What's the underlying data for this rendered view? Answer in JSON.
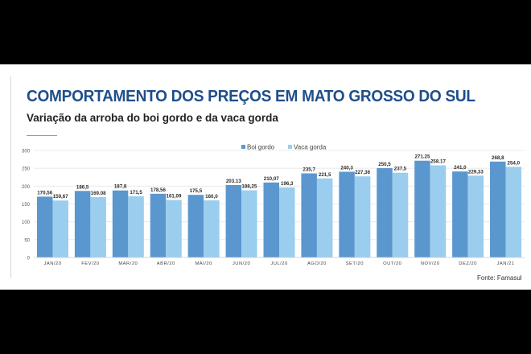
{
  "header": {
    "title": "COMPORTAMENTO DOS PREÇOS EM MATO GROSSO DO SUL",
    "subtitle": "Variação da arroba do boi gordo e da vaca gorda"
  },
  "source": "Fonte: Famasul",
  "colors": {
    "boi": "#5b97cf",
    "vaca": "#9bcdee",
    "title": "#1f4e8a"
  },
  "chart_data": {
    "type": "bar",
    "title": "COMPORTAMENTO DOS PREÇOS EM MATO GROSSO DO SUL",
    "subtitle": "Variação da arroba do boi gordo e da vaca gorda",
    "categories": [
      "JAN/20",
      "FEV/20",
      "MAR/20",
      "ABR/20",
      "MAI/20",
      "JUN/20",
      "JUL/20",
      "AGO/20",
      "SET/20",
      "OUT/20",
      "NOV/20",
      "DEZ/20",
      "JAN/21"
    ],
    "series": [
      {
        "name": "Boi gordo",
        "values": [
          170.56,
          186.5,
          187.8,
          178.56,
          175.5,
          203.13,
          210.07,
          235.7,
          240.3,
          250.5,
          271.25,
          241.0,
          268.8
        ],
        "labels": [
          "170,56",
          "186,5",
          "187,8",
          "178,56",
          "175,5",
          "203.13",
          "210,07",
          "235,7",
          "240,3",
          "250,5",
          "271.25",
          "241,0",
          "268,8"
        ]
      },
      {
        "name": "Vaca gorda",
        "values": [
          159.67,
          169.08,
          171.5,
          161.09,
          160.0,
          188.25,
          196.3,
          221.5,
          227.36,
          237.5,
          258.17,
          229.33,
          254.0
        ],
        "labels": [
          "159,67",
          "169.08",
          "171,5",
          "161,09",
          "160,0",
          "188,25",
          "196,3",
          "221,5",
          "227,36",
          "237,5",
          "258.17",
          "229,33",
          "254,0"
        ]
      }
    ],
    "yticks": [
      0,
      50,
      100,
      150,
      200,
      250,
      300
    ],
    "ylim": [
      0,
      300
    ],
    "grid": true,
    "legend": "top-right",
    "xlabel": "",
    "ylabel": ""
  }
}
